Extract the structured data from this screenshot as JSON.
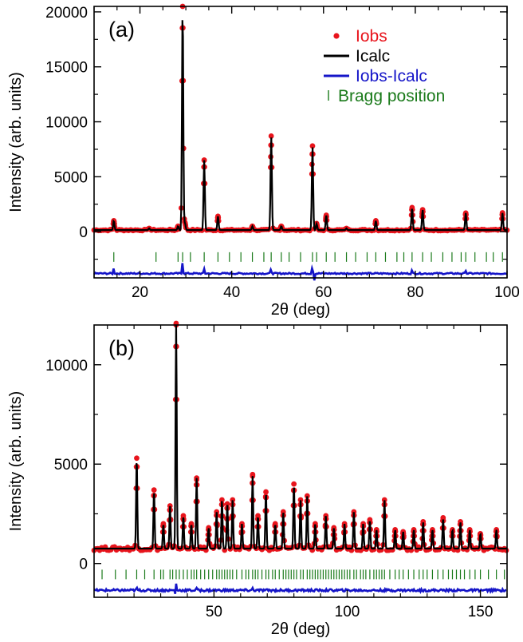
{
  "chart_data": [
    {
      "panel": "(a)",
      "type": "scatter",
      "xlabel": "2θ (deg)",
      "ylabel": "Intensity (arb. units)",
      "xlim": [
        10,
        100
      ],
      "ylim": [
        -4200,
        20500
      ],
      "xticks": [
        20,
        40,
        60,
        80,
        100
      ],
      "yticks": [
        0,
        5000,
        10000,
        15000,
        20000
      ],
      "legend_position": "top-right",
      "legend": [
        {
          "label": "Iobs",
          "color": "#e8141c",
          "marker": "dot"
        },
        {
          "label": "Icalc",
          "color": "#000000",
          "marker": "line"
        },
        {
          "label": "Iobs-Icalc",
          "color": "#1515c8",
          "marker": "line"
        },
        {
          "label": "Bragg position",
          "color": "#1a7a1a",
          "marker": "tick"
        }
      ],
      "background": 150,
      "peaks": [
        {
          "x": 14.3,
          "y": 1000
        },
        {
          "x": 22.0,
          "y": 300
        },
        {
          "x": 28.3,
          "y": 500
        },
        {
          "x": 29.3,
          "y": 20500
        },
        {
          "x": 29.8,
          "y": 800
        },
        {
          "x": 34.0,
          "y": 6500
        },
        {
          "x": 37.0,
          "y": 1400
        },
        {
          "x": 44.5,
          "y": 500
        },
        {
          "x": 48.6,
          "y": 8700
        },
        {
          "x": 50.8,
          "y": 500
        },
        {
          "x": 57.6,
          "y": 7800
        },
        {
          "x": 58.5,
          "y": 700
        },
        {
          "x": 60.6,
          "y": 1500
        },
        {
          "x": 65.0,
          "y": 300
        },
        {
          "x": 71.4,
          "y": 1000
        },
        {
          "x": 79.3,
          "y": 2200
        },
        {
          "x": 81.6,
          "y": 2000
        },
        {
          "x": 91.0,
          "y": 1700
        },
        {
          "x": 99.0,
          "y": 1700
        }
      ],
      "bragg_y": -2300,
      "bragg_positions": [
        14.3,
        23.5,
        28.3,
        29.3,
        31.0,
        34.0,
        37.0,
        39.5,
        42.0,
        44.5,
        47.0,
        48.6,
        50.8,
        52.5,
        55.0,
        57.6,
        58.5,
        60.6,
        62.5,
        65.0,
        67.0,
        69.5,
        71.4,
        73.5,
        76.0,
        77.5,
        79.3,
        81.6,
        83.5,
        86.0,
        88.0,
        90.0,
        91.0,
        93.0,
        95.5,
        97.0,
        99.0
      ],
      "difference_offset": -3800,
      "difference_spikes": [
        {
          "x": 14.3,
          "y": 500
        },
        {
          "x": 29.3,
          "y": 1200
        },
        {
          "x": 34.0,
          "y": 400
        },
        {
          "x": 48.6,
          "y": 600
        },
        {
          "x": 57.6,
          "y": 1000
        },
        {
          "x": 58.0,
          "y": -600
        },
        {
          "x": 79.3,
          "y": 300
        },
        {
          "x": 91.0,
          "y": 300
        }
      ]
    },
    {
      "panel": "(b)",
      "type": "scatter",
      "xlabel": "2θ (deg)",
      "ylabel": "Intensity (arb. units)",
      "xlim": [
        5,
        160
      ],
      "ylim": [
        -1700,
        12000
      ],
      "xticks": [
        50,
        100,
        150
      ],
      "yticks": [
        0,
        5000,
        10000
      ],
      "background": 750,
      "peaks": [
        {
          "x": 21.0,
          "y": 5300
        },
        {
          "x": 27.5,
          "y": 3700
        },
        {
          "x": 31.0,
          "y": 2000
        },
        {
          "x": 33.5,
          "y": 2900
        },
        {
          "x": 35.8,
          "y": 12000
        },
        {
          "x": 38.5,
          "y": 2400
        },
        {
          "x": 41.5,
          "y": 2000
        },
        {
          "x": 43.5,
          "y": 4300
        },
        {
          "x": 48.0,
          "y": 1800
        },
        {
          "x": 51.0,
          "y": 2600
        },
        {
          "x": 53.0,
          "y": 3200
        },
        {
          "x": 55.0,
          "y": 3000
        },
        {
          "x": 57.0,
          "y": 3200
        },
        {
          "x": 60.5,
          "y": 2000
        },
        {
          "x": 64.5,
          "y": 4400
        },
        {
          "x": 66.5,
          "y": 2400
        },
        {
          "x": 69.5,
          "y": 3600
        },
        {
          "x": 73.0,
          "y": 2000
        },
        {
          "x": 76.0,
          "y": 2600
        },
        {
          "x": 80.0,
          "y": 4000
        },
        {
          "x": 82.5,
          "y": 3200
        },
        {
          "x": 85.0,
          "y": 3400
        },
        {
          "x": 88.0,
          "y": 2000
        },
        {
          "x": 92.0,
          "y": 2400
        },
        {
          "x": 95.0,
          "y": 1800
        },
        {
          "x": 99.0,
          "y": 2000
        },
        {
          "x": 102.5,
          "y": 2600
        },
        {
          "x": 106.0,
          "y": 2000
        },
        {
          "x": 108.5,
          "y": 2200
        },
        {
          "x": 111.0,
          "y": 1700
        },
        {
          "x": 114.0,
          "y": 3200
        },
        {
          "x": 118.0,
          "y": 1700
        },
        {
          "x": 121.0,
          "y": 1600
        },
        {
          "x": 125.0,
          "y": 1700
        },
        {
          "x": 128.5,
          "y": 2100
        },
        {
          "x": 132.0,
          "y": 1700
        },
        {
          "x": 136.0,
          "y": 2300
        },
        {
          "x": 139.5,
          "y": 1700
        },
        {
          "x": 142.5,
          "y": 2100
        },
        {
          "x": 146.0,
          "y": 1700
        },
        {
          "x": 150.0,
          "y": 1500
        },
        {
          "x": 156.0,
          "y": 1700
        }
      ],
      "bragg_y": -550,
      "bragg_positions": [
        8,
        13,
        17,
        21,
        24,
        27.5,
        30,
        31,
        33.5,
        34.5,
        35.8,
        37,
        38.5,
        40,
        41.5,
        42.5,
        43.5,
        45,
        46.5,
        48,
        49.5,
        51,
        52,
        53,
        54,
        55,
        56,
        57,
        58.5,
        60.5,
        62,
        63,
        64.5,
        65.5,
        66.5,
        68,
        69.5,
        70.5,
        72,
        73,
        74.5,
        76,
        77,
        78,
        79,
        80,
        81,
        82.5,
        83.5,
        85,
        86,
        87,
        88,
        89,
        90,
        91,
        92,
        93,
        94,
        95,
        96,
        97,
        98,
        99,
        100,
        101,
        102.5,
        103.5,
        105,
        106,
        107,
        108.5,
        110,
        111,
        112,
        113,
        114,
        116,
        118,
        119.5,
        121,
        123,
        125,
        127,
        128.5,
        130,
        132,
        134,
        136,
        138,
        139.5,
        141,
        142.5,
        144,
        146,
        148,
        150,
        153,
        156,
        159
      ],
      "difference_offset": -1350,
      "difference_spikes": [
        {
          "x": 21.0,
          "y": 150
        },
        {
          "x": 35.8,
          "y": 400
        },
        {
          "x": 35.6,
          "y": -300
        },
        {
          "x": 43.5,
          "y": 150
        },
        {
          "x": 64.5,
          "y": 120
        }
      ]
    }
  ],
  "panels": {
    "a": {
      "label": "(a)"
    },
    "b": {
      "label": "(b)"
    }
  }
}
